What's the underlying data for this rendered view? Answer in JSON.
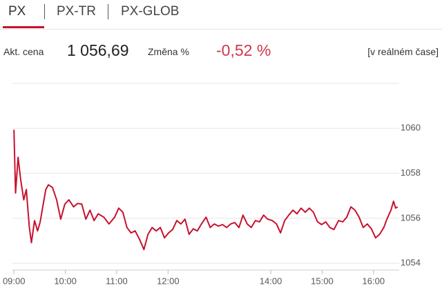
{
  "tabs": [
    "PX",
    "PX-TR",
    "PX-GLOB"
  ],
  "quote": {
    "price_label": "Akt. cena",
    "price": "1 056,69",
    "change_label": "Změna %",
    "change": "-0,52 %",
    "status": "[v reálném čase]"
  },
  "chart_data": {
    "type": "line",
    "color": "#c8102e",
    "grid": true,
    "xlim": [
      8.97,
      16.5
    ],
    "ylim": [
      1053.7,
      1062
    ],
    "xticks": [
      {
        "value": 9,
        "label": "09:00"
      },
      {
        "value": 10,
        "label": "10:00"
      },
      {
        "value": 11,
        "label": "11:00"
      },
      {
        "value": 12,
        "label": "12:00"
      },
      {
        "value": 14,
        "label": "14:00"
      },
      {
        "value": 15,
        "label": "15:00"
      },
      {
        "value": 16,
        "label": "16:00"
      }
    ],
    "yticks": [
      1054,
      1056,
      1058,
      1060
    ],
    "x": [
      9.0,
      9.03,
      9.08,
      9.13,
      9.19,
      9.24,
      9.3,
      9.34,
      9.4,
      9.46,
      9.51,
      9.56,
      9.62,
      9.67,
      9.75,
      9.83,
      9.91,
      9.99,
      10.07,
      10.16,
      10.24,
      10.32,
      10.4,
      10.48,
      10.56,
      10.64,
      10.75,
      10.85,
      10.96,
      11.04,
      11.12,
      11.2,
      11.28,
      11.36,
      11.45,
      11.53,
      11.61,
      11.69,
      11.77,
      11.85,
      11.93,
      12.01,
      12.09,
      12.17,
      12.25,
      12.33,
      12.41,
      12.49,
      12.57,
      12.65,
      12.74,
      12.82,
      12.9,
      12.98,
      13.06,
      13.14,
      13.22,
      13.3,
      13.38,
      13.46,
      13.54,
      13.62,
      13.7,
      13.78,
      13.86,
      13.94,
      14.03,
      14.11,
      14.19,
      14.27,
      14.35,
      14.43,
      14.51,
      14.59,
      14.67,
      14.75,
      14.83,
      14.91,
      14.99,
      15.07,
      15.15,
      15.23,
      15.32,
      15.4,
      15.48,
      15.56,
      15.64,
      15.72,
      15.8,
      15.88,
      15.96,
      16.04,
      16.12,
      16.2,
      16.26,
      16.34,
      16.39,
      16.43,
      16.47
    ],
    "values": [
      1059.94,
      1057.12,
      1058.71,
      1057.73,
      1056.82,
      1057.28,
      1055.59,
      1054.92,
      1055.9,
      1055.44,
      1055.84,
      1056.51,
      1057.28,
      1057.49,
      1057.37,
      1056.82,
      1055.96,
      1056.63,
      1056.82,
      1056.51,
      1056.66,
      1056.63,
      1055.96,
      1056.36,
      1055.9,
      1056.2,
      1056.05,
      1055.75,
      1056.05,
      1056.45,
      1056.27,
      1055.59,
      1055.35,
      1055.44,
      1055.04,
      1054.61,
      1055.29,
      1055.59,
      1055.44,
      1055.59,
      1055.13,
      1055.35,
      1055.5,
      1055.9,
      1055.75,
      1055.96,
      1055.29,
      1055.53,
      1055.44,
      1055.75,
      1056.05,
      1055.59,
      1055.75,
      1055.65,
      1055.72,
      1055.59,
      1055.75,
      1055.81,
      1055.59,
      1056.14,
      1055.75,
      1055.59,
      1055.9,
      1055.84,
      1056.14,
      1055.96,
      1055.9,
      1055.75,
      1055.35,
      1055.9,
      1056.14,
      1056.36,
      1056.2,
      1056.45,
      1056.27,
      1056.45,
      1056.27,
      1055.84,
      1055.72,
      1055.84,
      1055.59,
      1055.5,
      1055.9,
      1055.84,
      1056.05,
      1056.51,
      1056.36,
      1056.05,
      1055.59,
      1055.75,
      1055.53,
      1055.13,
      1055.29,
      1055.59,
      1055.96,
      1056.36,
      1056.76,
      1056.45,
      1056.51
    ]
  }
}
